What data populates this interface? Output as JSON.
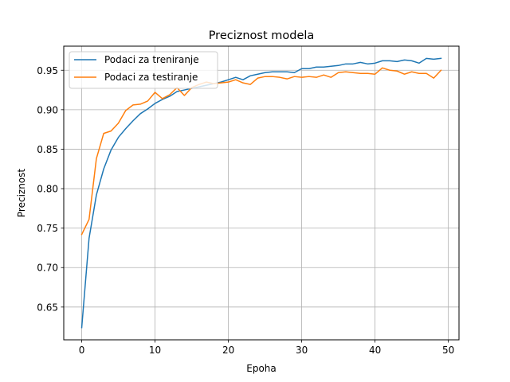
{
  "chart_data": {
    "type": "line",
    "title": "Preciznost modela",
    "xlabel": "Epoha",
    "ylabel": "Preciznost",
    "xlim": [
      -2.45,
      51.45
    ],
    "ylim": [
      0.6085,
      0.9805
    ],
    "x_ticks": [
      0,
      10,
      20,
      30,
      40,
      50
    ],
    "y_ticks": [
      0.65,
      0.7,
      0.75,
      0.8,
      0.85,
      0.9,
      0.95
    ],
    "grid": true,
    "legend_position": "top-left",
    "x": [
      0,
      1,
      2,
      3,
      4,
      5,
      6,
      7,
      8,
      9,
      10,
      11,
      12,
      13,
      14,
      15,
      16,
      17,
      18,
      19,
      20,
      21,
      22,
      23,
      24,
      25,
      26,
      27,
      28,
      29,
      30,
      31,
      32,
      33,
      34,
      35,
      36,
      37,
      38,
      39,
      40,
      41,
      42,
      43,
      44,
      45,
      46,
      47,
      48,
      49
    ],
    "series": [
      {
        "name": "Podaci za treniranje",
        "color": "#1f77b4",
        "values": [
          0.624,
          0.737,
          0.792,
          0.825,
          0.849,
          0.865,
          0.876,
          0.886,
          0.895,
          0.901,
          0.908,
          0.913,
          0.917,
          0.923,
          0.925,
          0.927,
          0.929,
          0.931,
          0.933,
          0.935,
          0.938,
          0.941,
          0.938,
          0.943,
          0.945,
          0.947,
          0.948,
          0.948,
          0.948,
          0.947,
          0.952,
          0.952,
          0.954,
          0.954,
          0.955,
          0.956,
          0.958,
          0.958,
          0.96,
          0.958,
          0.959,
          0.962,
          0.962,
          0.961,
          0.963,
          0.962,
          0.959,
          0.965,
          0.964,
          0.965
        ]
      },
      {
        "name": "Podaci za testiranje",
        "color": "#ff7f0e",
        "values": [
          0.742,
          0.761,
          0.838,
          0.87,
          0.873,
          0.883,
          0.899,
          0.906,
          0.907,
          0.911,
          0.922,
          0.914,
          0.919,
          0.928,
          0.918,
          0.928,
          0.932,
          0.935,
          0.933,
          0.934,
          0.935,
          0.938,
          0.934,
          0.932,
          0.94,
          0.942,
          0.942,
          0.941,
          0.939,
          0.942,
          0.941,
          0.942,
          0.941,
          0.944,
          0.941,
          0.947,
          0.948,
          0.947,
          0.946,
          0.946,
          0.945,
          0.953,
          0.95,
          0.949,
          0.945,
          0.948,
          0.946,
          0.946,
          0.94,
          0.95
        ]
      }
    ]
  }
}
